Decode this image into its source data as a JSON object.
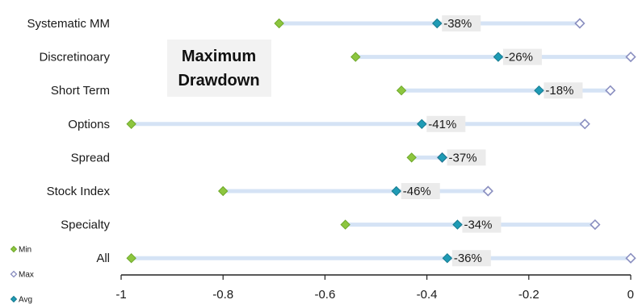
{
  "chart_data": {
    "type": "dot-range",
    "title_lines": [
      "Maximum",
      "Drawdown"
    ],
    "categories": [
      "Systematic MM",
      "Discretinoary",
      "Short Term",
      "Options",
      "Spread",
      "Stock Index",
      "Specialty",
      "All"
    ],
    "series": [
      {
        "name": "Min",
        "values": [
          -0.69,
          -0.54,
          -0.45,
          -0.98,
          -0.43,
          -0.8,
          -0.56,
          -0.98
        ]
      },
      {
        "name": "Max",
        "values": [
          -0.1,
          0.0,
          -0.04,
          -0.09,
          -0.37,
          -0.28,
          -0.07,
          0.0
        ]
      },
      {
        "name": "Avg",
        "values": [
          -0.38,
          -0.26,
          -0.18,
          -0.41,
          -0.37,
          -0.46,
          -0.34,
          -0.36
        ]
      }
    ],
    "avg_labels": [
      "-38%",
      "-26%",
      "-18%",
      "-41%",
      "-37%",
      "-46%",
      "-34%",
      "-36%"
    ],
    "xlim": [
      -1,
      0
    ],
    "xticks": [
      -1,
      -0.8,
      -0.6,
      -0.4,
      -0.2,
      0
    ],
    "xtick_labels": [
      "-1",
      "-0.8",
      "-0.6",
      "-0.4",
      "-0.2",
      "0"
    ],
    "xlabel": "",
    "ylabel": "",
    "legend_position": "bottom-left",
    "grid": false
  },
  "colors": {
    "min": "#8dc63f",
    "max": "#8a8fc0",
    "avg": "#1f9bb5",
    "range_bar": "#d5e3f5",
    "label_bg": "#ebebeb"
  }
}
